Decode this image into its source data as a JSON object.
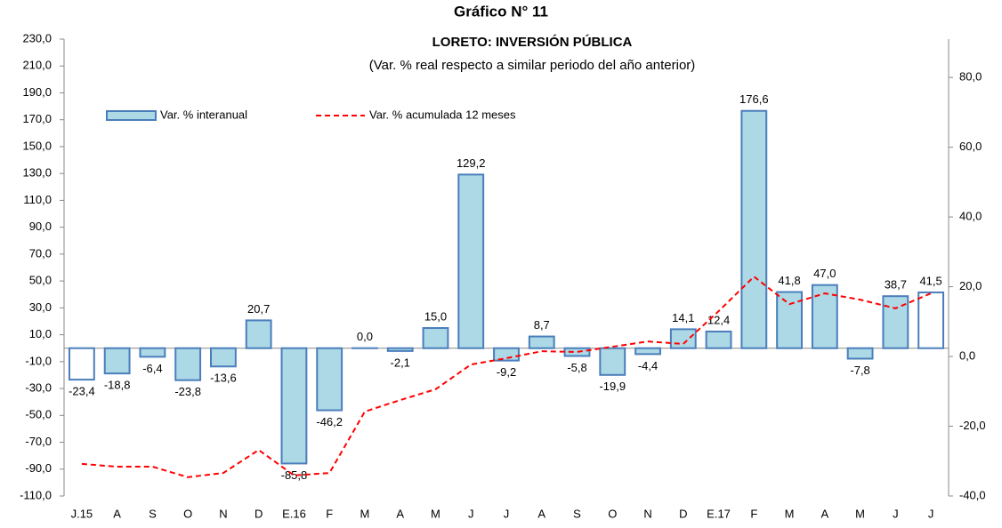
{
  "chart_data": {
    "type": "bar",
    "title": "Gráfico N° 11",
    "subtitle": "LORETO: INVERSIÓN PÚBLICA",
    "description": "(Var. % real respecto a similar periodo del año anterior)",
    "categories": [
      "J.15",
      "A",
      "S",
      "O",
      "N",
      "D",
      "E.16",
      "F",
      "M",
      "A",
      "M",
      "J",
      "J",
      "A",
      "S",
      "O",
      "N",
      "D",
      "E.17",
      "F",
      "M",
      "A",
      "M",
      "J",
      "J"
    ],
    "series": [
      {
        "name": "Var. % interanual",
        "type": "bar",
        "color": "#add8e6",
        "edge_color": "#4a7ebb",
        "colors": [
          "#ffffff",
          "#add8e6",
          "#add8e6",
          "#add8e6",
          "#add8e6",
          "#add8e6",
          "#add8e6",
          "#add8e6",
          "#add8e6",
          "#add8e6",
          "#add8e6",
          "#add8e6",
          "#add8e6",
          "#add8e6",
          "#add8e6",
          "#add8e6",
          "#add8e6",
          "#add8e6",
          "#add8e6",
          "#add8e6",
          "#add8e6",
          "#add8e6",
          "#add8e6",
          "#add8e6",
          "#ffffff"
        ],
        "values": [
          -23.4,
          -18.8,
          -6.4,
          -23.8,
          -13.6,
          20.7,
          -85.8,
          -46.2,
          0.0,
          -2.1,
          15.0,
          129.2,
          -9.2,
          8.7,
          -5.8,
          -19.9,
          -4.4,
          14.1,
          12.4,
          176.6,
          41.8,
          47.0,
          -7.8,
          38.7,
          41.5
        ],
        "value_labels": [
          "-23,4",
          "-18,8",
          "-6,4",
          "-23,8",
          "-13,6",
          "20,7",
          "-85,8",
          "-46,2",
          "0,0",
          "-2,1",
          "15,0",
          "129,2",
          "-9,2",
          "8,7",
          "-5,8",
          "-19,9",
          "-4,4",
          "14,1",
          "12,4",
          "176,6",
          "41,8",
          "47,0",
          "-7,8",
          "38,7",
          "41,5"
        ]
      },
      {
        "name": "Var. % acumulada 12 meses",
        "type": "line",
        "axis": "y2",
        "color": "#ff0000",
        "dashed": true,
        "values": [
          -30.8,
          -31.6,
          -31.6,
          -34.6,
          -33.4,
          -26.8,
          -34.1,
          -33.4,
          -15.8,
          -12.5,
          -9.4,
          -2.3,
          -0.5,
          1.5,
          1.3,
          2.8,
          4.3,
          3.6,
          13.0,
          22.9,
          15.0,
          18.1,
          16.3,
          13.8,
          18.1
        ]
      }
    ],
    "ylim": [
      -110,
      230
    ],
    "yticks": [
      {
        "value": -110,
        "label": "-110,0"
      },
      {
        "value": -90,
        "label": "-90,0"
      },
      {
        "value": -70,
        "label": "-70,0"
      },
      {
        "value": -50,
        "label": "-50,0"
      },
      {
        "value": -30,
        "label": "-30,0"
      },
      {
        "value": -10,
        "label": "-10,0"
      },
      {
        "value": 10,
        "label": "10,0"
      },
      {
        "value": 30,
        "label": "30,0"
      },
      {
        "value": 50,
        "label": "50,0"
      },
      {
        "value": 70,
        "label": "70,0"
      },
      {
        "value": 90,
        "label": "90,0"
      },
      {
        "value": 110,
        "label": "110,0"
      },
      {
        "value": 130,
        "label": "130,0"
      },
      {
        "value": 150,
        "label": "150,0"
      },
      {
        "value": 170,
        "label": "170,0"
      },
      {
        "value": 190,
        "label": "190,0"
      },
      {
        "value": 210,
        "label": "210,0"
      },
      {
        "value": 230,
        "label": "230,0"
      }
    ],
    "y2lim": [
      -40,
      91
    ],
    "y2ticks": [
      {
        "value": -40,
        "label": "-40,0"
      },
      {
        "value": -20,
        "label": "-20,0"
      },
      {
        "value": 0,
        "label": "0,0"
      },
      {
        "value": 20,
        "label": "20,0"
      },
      {
        "value": 40,
        "label": "40,0"
      },
      {
        "value": 60,
        "label": "60,0"
      },
      {
        "value": 80,
        "label": "80,0"
      }
    ],
    "grid": false
  }
}
